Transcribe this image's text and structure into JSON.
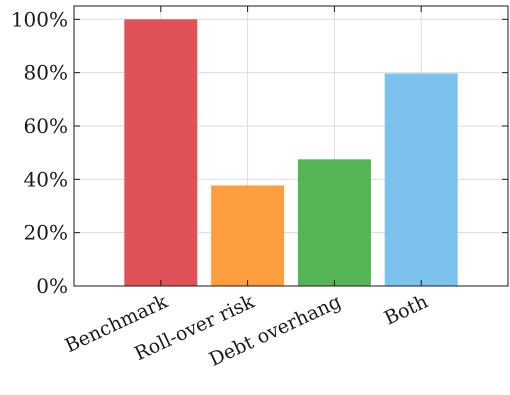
{
  "chart_data": {
    "type": "bar",
    "categories": [
      "Benchmark",
      "Roll-over risk",
      "Debt overhang",
      "Both"
    ],
    "values": [
      100,
      37.7,
      47.5,
      79.7
    ],
    "colors": [
      "#e05257",
      "#ff9e3e",
      "#55b555",
      "#7bc2ec"
    ],
    "title": "",
    "xlabel": "",
    "ylabel": "",
    "ylim": [
      0,
      105
    ],
    "yticks": [
      0,
      20,
      40,
      60,
      80,
      100
    ],
    "ytick_labels": [
      "0%",
      "20%",
      "40%",
      "60%",
      "80%",
      "100%"
    ],
    "grid": true,
    "legend": "none"
  }
}
